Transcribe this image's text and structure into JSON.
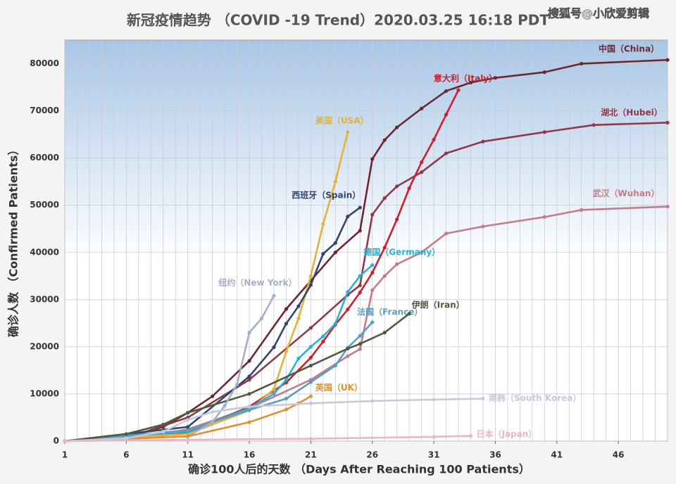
{
  "chart_data": {
    "type": "line",
    "title": "新冠疫情趋势 （COVID -19 Trend）2020.03.25   16:18 PDT",
    "watermark": "搜狐号@小欣爱剪辑",
    "x_label": "确诊100人后的天数 （Days After Reaching 100 Patients）",
    "y_label": "确诊人数 （Confirmed Patients）",
    "xlim": [
      1,
      50
    ],
    "ylim": [
      0,
      85000
    ],
    "xticks": [
      1,
      6,
      11,
      16,
      21,
      26,
      31,
      36,
      41,
      46
    ],
    "yticks": [
      0,
      10000,
      20000,
      30000,
      40000,
      50000,
      60000,
      70000,
      80000
    ],
    "grid": true,
    "series": [
      {
        "name": "中国（China）",
        "color": "#6b2834",
        "x": [
          1,
          6,
          9,
          11,
          13,
          16,
          19,
          21,
          23,
          25,
          26,
          27,
          28,
          30,
          32,
          34,
          36,
          40,
          43,
          50
        ],
        "values": [
          0,
          800,
          3000,
          6000,
          9500,
          17000,
          28000,
          34000,
          40000,
          44600,
          59800,
          63800,
          66500,
          70500,
          74200,
          76000,
          77000,
          78200,
          80000,
          80800
        ]
      },
      {
        "name": "湖北（Hubei）",
        "color": "#8e3a4a",
        "x": [
          1,
          6,
          11,
          16,
          21,
          24,
          25,
          26,
          27,
          28,
          30,
          32,
          35,
          40,
          44,
          50
        ],
        "values": [
          0,
          600,
          5000,
          13000,
          24000,
          31000,
          33000,
          48000,
          51500,
          54000,
          57000,
          61000,
          63500,
          65500,
          67000,
          67500
        ]
      },
      {
        "name": "武汉（Wuhan）",
        "color": "#c27c8a",
        "x": [
          1,
          6,
          11,
          16,
          21,
          24,
          25,
          26,
          27,
          28,
          30,
          32,
          35,
          40,
          43,
          50
        ],
        "values": [
          0,
          300,
          2500,
          7000,
          13000,
          18000,
          19500,
          32000,
          35000,
          37500,
          40000,
          44000,
          45500,
          47500,
          49000,
          49700
        ]
      },
      {
        "name": "意大利（Italy）",
        "color": "#cc1f2e",
        "x": [
          1,
          6,
          11,
          16,
          19,
          21,
          22,
          23,
          24,
          25,
          26,
          27,
          28,
          29,
          30,
          31,
          32,
          33
        ],
        "values": [
          0,
          500,
          1700,
          7300,
          12400,
          17700,
          21100,
          24700,
          27900,
          31500,
          35700,
          41000,
          47000,
          53600,
          59100,
          63900,
          69200,
          74400
        ]
      },
      {
        "name": "美国（USA）",
        "color": "#e3b23a",
        "x": [
          1,
          11,
          16,
          18,
          19,
          20,
          21,
          22,
          23,
          24
        ],
        "values": [
          0,
          1500,
          6500,
          11000,
          19000,
          26000,
          35000,
          46000,
          55000,
          65500
        ]
      },
      {
        "name": "西班牙（Spain）",
        "color": "#35456a",
        "x": [
          1,
          11,
          16,
          18,
          19,
          20,
          21,
          22,
          23,
          24,
          25
        ],
        "values": [
          0,
          3000,
          13700,
          19900,
          24900,
          28600,
          33100,
          39700,
          42000,
          47600,
          49500
        ]
      },
      {
        "name": "德国（Germany）",
        "color": "#2eb0d2",
        "x": [
          1,
          11,
          16,
          18,
          19,
          20,
          21,
          22,
          23,
          24,
          25,
          26
        ],
        "values": [
          0,
          2000,
          7000,
          10000,
          13000,
          17500,
          20000,
          22200,
          24900,
          31600,
          35000,
          37300
        ]
      },
      {
        "name": "法国（France）",
        "color": "#5a9ec2",
        "x": [
          1,
          11,
          16,
          19,
          21,
          23,
          24,
          25,
          26
        ],
        "values": [
          0,
          2300,
          6600,
          9000,
          12500,
          16000,
          19800,
          22300,
          25200
        ]
      },
      {
        "name": "伊朗（Iran）",
        "color": "#4f5a3e",
        "x": [
          1,
          6,
          9,
          11,
          16,
          21,
          24,
          25,
          27,
          29
        ],
        "values": [
          0,
          1500,
          3500,
          6000,
          10000,
          16000,
          19600,
          20600,
          23000,
          27000
        ]
      },
      {
        "name": "纽约（New York）",
        "color": "#a6aec8",
        "x": [
          1,
          11,
          13,
          14,
          15,
          16,
          17,
          18
        ],
        "values": [
          0,
          1000,
          4000,
          7500,
          12000,
          23000,
          26000,
          30800
        ]
      },
      {
        "name": "英国（UK）",
        "color": "#e09030",
        "x": [
          1,
          11,
          16,
          19,
          20,
          21
        ],
        "values": [
          0,
          1000,
          4000,
          6700,
          8000,
          9500
        ]
      },
      {
        "name": "南韩（South Korea）",
        "color": "#c6cad8",
        "x": [
          1,
          6,
          9,
          11,
          13,
          16,
          21,
          26,
          31,
          35
        ],
        "values": [
          0,
          600,
          2000,
          4500,
          6200,
          7300,
          8000,
          8500,
          8800,
          9000
        ]
      },
      {
        "name": "日本（Japan）",
        "color": "#e8b6c6",
        "x": [
          1,
          11,
          21,
          31,
          34
        ],
        "values": [
          0,
          300,
          500,
          900,
          1100
        ]
      }
    ]
  }
}
